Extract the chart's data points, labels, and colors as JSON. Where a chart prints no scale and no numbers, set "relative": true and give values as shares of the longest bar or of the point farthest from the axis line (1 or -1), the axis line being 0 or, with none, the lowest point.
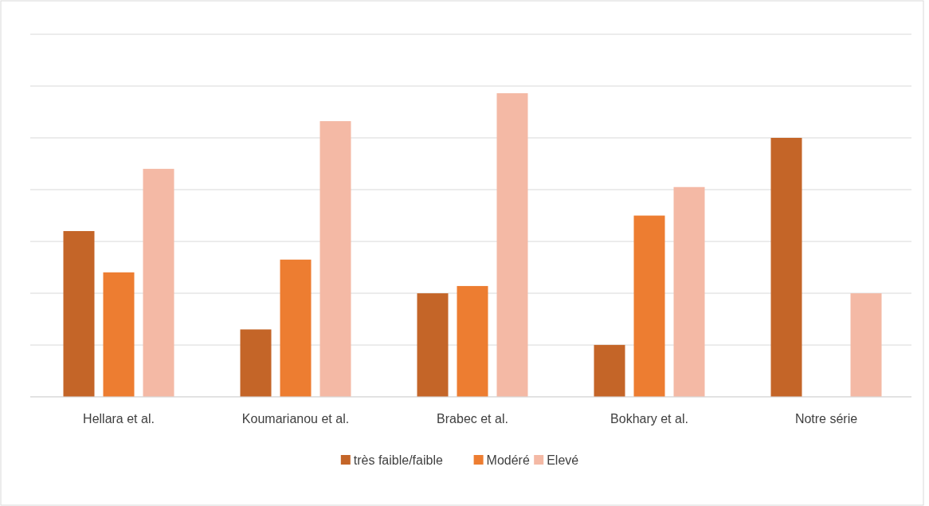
{
  "chart_data": {
    "type": "bar",
    "relative": true,
    "grid": "y",
    "legend": "bottom",
    "categories": [
      "Hellara et al.",
      "Koumarianou et al.",
      "Brabec et al.",
      "Bokhary et al.",
      "Notre série"
    ],
    "series": [
      {
        "name": "très faible/faible",
        "color": "#c46528",
        "values": [
          0.546,
          0.222,
          0.341,
          0.171,
          0.853
        ]
      },
      {
        "name": "Modéré",
        "color": "#ed7d31",
        "values": [
          0.41,
          0.452,
          0.365,
          0.597,
          0
        ]
      },
      {
        "name": "Elevé",
        "color": "#f4b9a5",
        "values": [
          0.751,
          0.908,
          1,
          0.691,
          0.341
        ]
      }
    ]
  }
}
